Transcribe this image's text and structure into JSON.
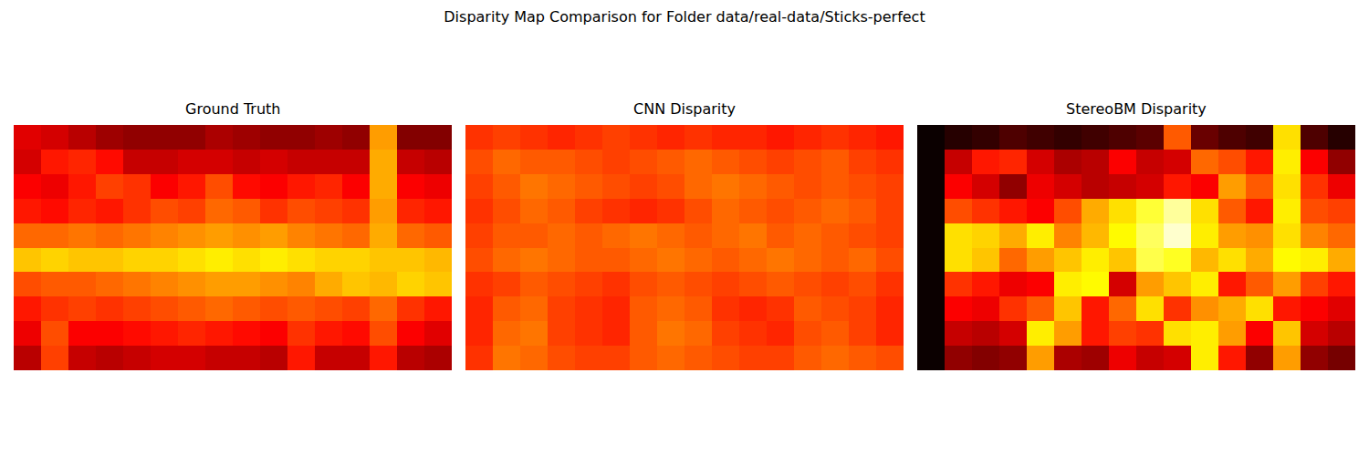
{
  "title": "Disparity Map Comparison for Folder data/real-data/Sticks-perfect",
  "chart_data": [
    {
      "type": "heatmap",
      "title": "Ground Truth",
      "color": "hot",
      "tick_labels": false,
      "zlim": [
        0,
        100
      ],
      "z": [
        [
          32,
          30,
          26,
          22,
          20,
          20,
          20,
          24,
          22,
          20,
          20,
          22,
          20,
          60,
          18,
          18
        ],
        [
          30,
          40,
          42,
          38,
          28,
          28,
          30,
          30,
          28,
          30,
          28,
          28,
          28,
          62,
          28,
          26
        ],
        [
          36,
          34,
          40,
          46,
          44,
          36,
          40,
          48,
          38,
          36,
          40,
          42,
          36,
          62,
          36,
          34
        ],
        [
          40,
          38,
          42,
          40,
          44,
          48,
          46,
          52,
          50,
          44,
          48,
          46,
          44,
          60,
          42,
          40
        ],
        [
          52,
          52,
          54,
          52,
          54,
          56,
          58,
          60,
          58,
          60,
          56,
          54,
          52,
          62,
          52,
          50
        ],
        [
          66,
          68,
          66,
          66,
          68,
          68,
          70,
          72,
          70,
          72,
          70,
          68,
          68,
          66,
          66,
          64
        ],
        [
          48,
          50,
          50,
          52,
          54,
          56,
          58,
          60,
          60,
          58,
          56,
          62,
          66,
          64,
          68,
          66
        ],
        [
          40,
          44,
          46,
          44,
          46,
          48,
          50,
          52,
          50,
          48,
          50,
          48,
          46,
          52,
          44,
          40
        ],
        [
          34,
          48,
          36,
          36,
          38,
          40,
          42,
          40,
          38,
          36,
          44,
          40,
          38,
          48,
          36,
          32
        ],
        [
          26,
          46,
          28,
          26,
          28,
          30,
          30,
          28,
          28,
          26,
          40,
          28,
          28,
          40,
          26,
          24
        ]
      ]
    },
    {
      "type": "heatmap",
      "title": "CNN Disparity",
      "color": "hot",
      "tick_labels": false,
      "zlim": [
        0,
        100
      ],
      "z": [
        [
          44,
          46,
          44,
          42,
          44,
          46,
          44,
          42,
          44,
          42,
          42,
          40,
          42,
          44,
          42,
          40
        ],
        [
          48,
          52,
          50,
          50,
          48,
          46,
          48,
          50,
          52,
          50,
          48,
          46,
          48,
          50,
          46,
          44
        ],
        [
          46,
          50,
          54,
          52,
          50,
          48,
          46,
          48,
          52,
          54,
          52,
          50,
          48,
          50,
          48,
          46
        ],
        [
          44,
          48,
          52,
          50,
          46,
          44,
          42,
          44,
          48,
          52,
          50,
          48,
          50,
          52,
          50,
          46
        ],
        [
          46,
          50,
          50,
          52,
          50,
          52,
          54,
          52,
          50,
          52,
          54,
          50,
          52,
          50,
          48,
          46
        ],
        [
          48,
          52,
          54,
          52,
          50,
          50,
          52,
          54,
          52,
          50,
          52,
          54,
          52,
          50,
          52,
          48
        ],
        [
          44,
          46,
          50,
          48,
          46,
          44,
          48,
          50,
          48,
          46,
          48,
          50,
          48,
          46,
          48,
          44
        ],
        [
          42,
          50,
          52,
          46,
          44,
          42,
          50,
          52,
          50,
          44,
          42,
          44,
          50,
          48,
          46,
          42
        ],
        [
          42,
          52,
          54,
          46,
          44,
          42,
          50,
          54,
          52,
          46,
          44,
          42,
          48,
          50,
          46,
          42
        ],
        [
          44,
          54,
          52,
          48,
          46,
          46,
          50,
          52,
          50,
          48,
          46,
          46,
          50,
          52,
          50,
          48
        ]
      ]
    },
    {
      "type": "heatmap",
      "title": "StereoBM Disparity",
      "color": "hot",
      "tick_labels": false,
      "zlim": [
        0,
        100
      ],
      "z": [
        [
          0,
          4,
          6,
          10,
          8,
          6,
          8,
          10,
          12,
          50,
          14,
          10,
          8,
          70,
          10,
          4
        ],
        [
          0,
          28,
          40,
          42,
          30,
          24,
          26,
          36,
          28,
          30,
          52,
          48,
          40,
          72,
          36,
          20
        ],
        [
          0,
          36,
          30,
          20,
          34,
          30,
          26,
          28,
          30,
          40,
          36,
          60,
          50,
          70,
          44,
          34
        ],
        [
          0,
          48,
          44,
          40,
          36,
          48,
          62,
          70,
          80,
          90,
          70,
          50,
          40,
          72,
          48,
          46
        ],
        [
          0,
          70,
          68,
          62,
          72,
          56,
          64,
          74,
          84,
          95,
          72,
          60,
          58,
          70,
          56,
          52
        ],
        [
          0,
          70,
          66,
          52,
          60,
          66,
          72,
          66,
          82,
          78,
          64,
          70,
          62,
          74,
          72,
          62
        ],
        [
          0,
          44,
          40,
          34,
          36,
          72,
          74,
          30,
          60,
          66,
          72,
          40,
          50,
          60,
          46,
          40
        ],
        [
          0,
          36,
          34,
          44,
          50,
          66,
          40,
          52,
          70,
          44,
          58,
          62,
          70,
          40,
          36,
          32
        ],
        [
          0,
          28,
          26,
          30,
          72,
          60,
          40,
          46,
          44,
          70,
          72,
          60,
          36,
          66,
          30,
          26
        ],
        [
          0,
          20,
          18,
          20,
          60,
          24,
          22,
          34,
          28,
          30,
          72,
          40,
          20,
          60,
          20,
          16
        ]
      ]
    }
  ]
}
